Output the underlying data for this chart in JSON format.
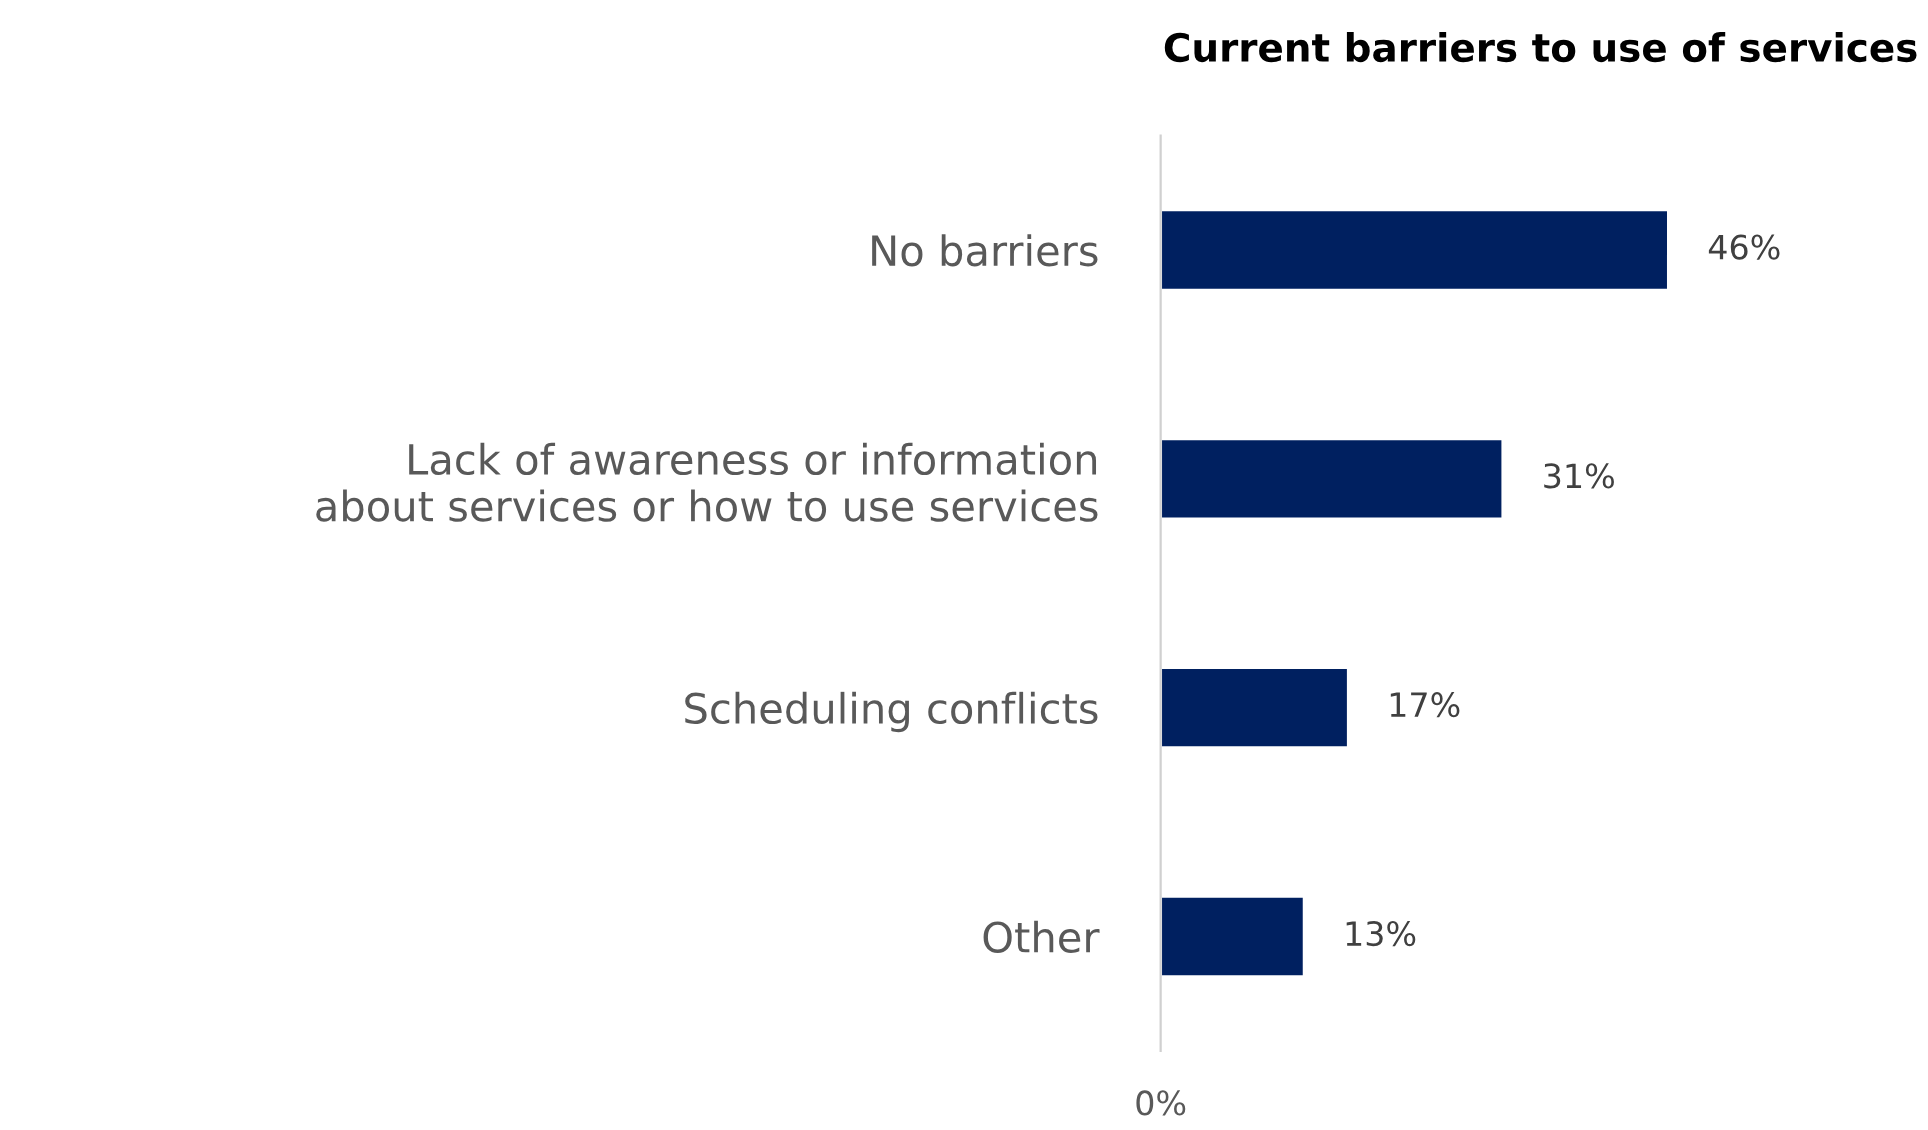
{
  "chart_data": {
    "type": "bar",
    "orientation": "horizontal",
    "title": "Current barriers to use of services",
    "categories": [
      "No barriers",
      "Lack of awareness or information\nabout services or how to use services",
      "Scheduling conflicts",
      "Other"
    ],
    "values": [
      46,
      31,
      17,
      13
    ],
    "color": "#002060",
    "value_labels": [
      "46%",
      "31%",
      "17%",
      "13%"
    ],
    "annotations": [
      "0%"
    ],
    "grid": false
  }
}
